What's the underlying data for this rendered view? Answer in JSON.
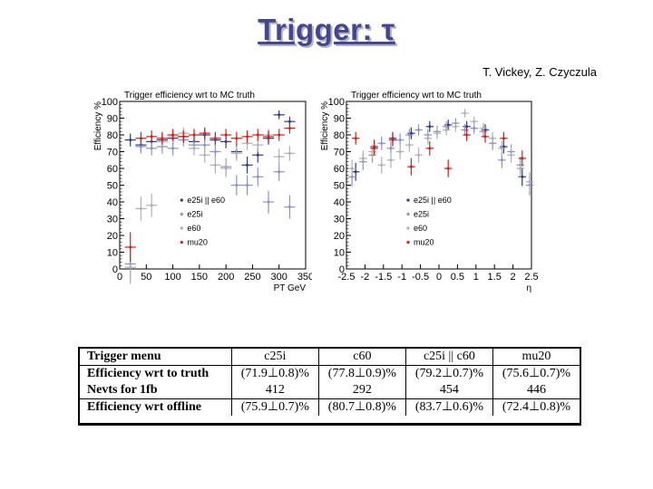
{
  "slide": {
    "title": "Trigger: τ",
    "authors": "T. Vickey, Z. Czyczula"
  },
  "colors": {
    "title": "#44468e",
    "series": [
      "#2c3a8c",
      "#8a91cc",
      "#b0b0b8",
      "#d62015"
    ]
  },
  "chart_data": [
    {
      "type": "scatter",
      "title": "Trigger efficiency wrt to MC truth",
      "xlabel": "PT GeV",
      "ylabel": "Efficiency %",
      "xlim": [
        0,
        350
      ],
      "ylim": [
        0,
        100
      ],
      "xticks": [
        0,
        50,
        100,
        150,
        200,
        250,
        300,
        350
      ],
      "yticks": [
        0,
        10,
        20,
        30,
        40,
        50,
        60,
        70,
        80,
        90,
        100
      ],
      "legend_position": "bottom-left",
      "series": [
        {
          "name": "e25i || e60",
          "x": [
            20,
            40,
            60,
            80,
            100,
            120,
            140,
            160,
            180,
            200,
            220,
            240,
            260,
            280,
            300,
            320
          ],
          "y": [
            77,
            74,
            76,
            77,
            78,
            79,
            76,
            80,
            77,
            76,
            70,
            62,
            68,
            78,
            92,
            88
          ]
        },
        {
          "name": "e25i",
          "x": [
            20,
            40,
            60,
            80,
            100,
            120,
            140,
            160,
            180,
            200,
            220,
            240,
            260,
            280,
            300,
            320
          ],
          "y": [
            3,
            73,
            72,
            73,
            72,
            77,
            74,
            74,
            70,
            61,
            50,
            50,
            55,
            40,
            58,
            37
          ]
        },
        {
          "name": "e60",
          "x": [
            20,
            40,
            60,
            80,
            100,
            120,
            140,
            160,
            180,
            200,
            220,
            240,
            260,
            280,
            300,
            320
          ],
          "y": [
            1,
            36,
            38,
            76,
            79,
            81,
            72,
            68,
            62,
            60,
            69,
            75,
            74,
            80,
            67,
            69
          ]
        },
        {
          "name": "mu20",
          "x": [
            20,
            40,
            60,
            80,
            100,
            120,
            140,
            160,
            180,
            200,
            220,
            240,
            260,
            280,
            300,
            320
          ],
          "y": [
            13,
            78,
            79,
            78,
            80,
            79,
            80,
            81,
            78,
            80,
            78,
            79,
            80,
            79,
            80,
            84
          ]
        }
      ]
    },
    {
      "type": "scatter",
      "title": "Trigger efficiency wrt to MC truth",
      "xlabel": "η",
      "ylabel": "Efficiency %",
      "xlim": [
        -2.5,
        2.5
      ],
      "ylim": [
        0,
        100
      ],
      "xticks": [
        -2.5,
        -2,
        -1.5,
        -1,
        -0.5,
        0,
        0.5,
        1,
        1.5,
        2,
        2.5
      ],
      "yticks": [
        0,
        10,
        20,
        30,
        40,
        50,
        60,
        70,
        80,
        90,
        100
      ],
      "legend_position": "bottom-left",
      "series": [
        {
          "name": "e25i || e60",
          "x": [
            -2.25,
            -1.75,
            -1.25,
            -0.75,
            -0.25,
            0.25,
            0.75,
            1.25,
            1.75,
            2.25
          ],
          "y": [
            58,
            73,
            78,
            81,
            85,
            86,
            85,
            83,
            73,
            55
          ]
        },
        {
          "name": "e25i",
          "x": [
            -2.35,
            -2.05,
            -1.8,
            -1.55,
            -1.3,
            -1.05,
            -0.8,
            -0.55,
            -0.3,
            -0.05,
            0.2,
            0.45,
            0.7,
            0.95,
            1.2,
            1.45,
            1.7,
            1.95,
            2.2,
            2.45
          ],
          "y": [
            55,
            64,
            68,
            75,
            72,
            77,
            80,
            83,
            80,
            82,
            85,
            87,
            83,
            84,
            82,
            75,
            65,
            70,
            62,
            50
          ]
        },
        {
          "name": "e60",
          "x": [
            -2.35,
            -2.05,
            -1.8,
            -1.55,
            -1.3,
            -1.05,
            -0.8,
            -0.55,
            -0.3,
            -0.05,
            0.2,
            0.45,
            0.7,
            0.95,
            1.2,
            1.45,
            1.7,
            1.95,
            2.2,
            2.45
          ],
          "y": [
            60,
            66,
            70,
            62,
            65,
            70,
            74,
            68,
            78,
            81,
            83,
            85,
            93,
            88,
            84,
            78,
            72,
            68,
            60,
            52
          ]
        },
        {
          "name": "mu20",
          "x": [
            -2.25,
            -1.75,
            -1.25,
            -0.75,
            -0.25,
            0.25,
            0.75,
            1.25,
            1.75,
            2.25
          ],
          "y": [
            78,
            72,
            77,
            61,
            72,
            60,
            80,
            79,
            78,
            66
          ]
        }
      ]
    },
    {
      "type": "table",
      "columns": [
        "Trigger menu",
        "c25i",
        "c60",
        "c25i || c60",
        "mu20"
      ],
      "rows": [
        [
          "Efficiency wrt to truth",
          "(71.9⊥0.8)%",
          "(77.8⊥0.9)%",
          "(79.2⊥0.7)%",
          "(75.6⊥0.7)%"
        ],
        [
          "Nevts for 1fb",
          "412",
          "292",
          "454",
          "446"
        ],
        [
          "Efficiency wrt offline",
          "(75.9⊥0.7)%",
          "(80.7⊥0.8)%",
          "(83.7⊥0.6)%",
          "(72.4⊥0.8)%"
        ]
      ]
    }
  ]
}
